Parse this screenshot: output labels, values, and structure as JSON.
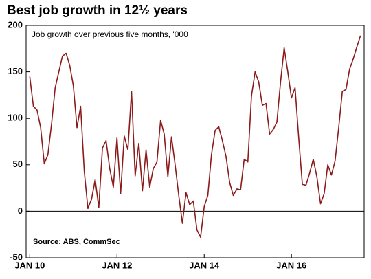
{
  "chart_data": {
    "type": "line",
    "title": "Best job growth in 12½ years",
    "subtitle": "Job growth over previous five months, '000",
    "source": "Source: ABS, CommSec",
    "x": [
      "2010-01",
      "2010-02",
      "2010-03",
      "2010-04",
      "2010-05",
      "2010-06",
      "2010-07",
      "2010-08",
      "2010-09",
      "2010-10",
      "2010-11",
      "2010-12",
      "2011-01",
      "2011-02",
      "2011-03",
      "2011-04",
      "2011-05",
      "2011-06",
      "2011-07",
      "2011-08",
      "2011-09",
      "2011-10",
      "2011-11",
      "2011-12",
      "2012-01",
      "2012-02",
      "2012-03",
      "2012-04",
      "2012-05",
      "2012-06",
      "2012-07",
      "2012-08",
      "2012-09",
      "2012-10",
      "2012-11",
      "2012-12",
      "2013-01",
      "2013-02",
      "2013-03",
      "2013-04",
      "2013-05",
      "2013-06",
      "2013-07",
      "2013-08",
      "2013-09",
      "2013-10",
      "2013-11",
      "2013-12",
      "2014-01",
      "2014-02",
      "2014-03",
      "2014-04",
      "2014-05",
      "2014-06",
      "2014-07",
      "2014-08",
      "2014-09",
      "2014-10",
      "2014-11",
      "2014-12",
      "2015-01",
      "2015-02",
      "2015-03",
      "2015-04",
      "2015-05",
      "2015-06",
      "2015-07",
      "2015-08",
      "2015-09",
      "2015-10",
      "2015-11",
      "2015-12",
      "2016-01",
      "2016-02",
      "2016-03",
      "2016-04",
      "2016-05",
      "2016-06",
      "2016-07",
      "2016-08",
      "2016-09",
      "2016-10",
      "2016-11",
      "2016-12",
      "2017-01",
      "2017-02",
      "2017-03",
      "2017-04",
      "2017-05",
      "2017-06",
      "2017-07",
      "2017-08"
    ],
    "series": [
      {
        "color": "#8b1a1a",
        "values": [
          145,
          113,
          109,
          90,
          51,
          61,
          94,
          133,
          150,
          167,
          170,
          157,
          135,
          90,
          113,
          43,
          3,
          13,
          34,
          4,
          68,
          76,
          46,
          26,
          79,
          19,
          81,
          66,
          129,
          38,
          73,
          22,
          66,
          26,
          46,
          53,
          98,
          83,
          37,
          80,
          50,
          17,
          -13,
          20,
          7,
          11,
          -20,
          -28,
          5,
          17,
          61,
          87,
          91,
          76,
          59,
          31,
          17,
          24,
          23,
          56,
          53,
          124,
          150,
          139,
          114,
          116,
          83,
          88,
          96,
          139,
          176,
          150,
          122,
          133,
          79,
          29,
          28,
          41,
          56,
          37,
          8,
          19,
          50,
          39,
          54,
          90,
          129,
          131,
          153,
          164,
          177,
          189
        ]
      }
    ],
    "xlim": [
      "2009-12",
      "2017-09"
    ],
    "xticks": [
      {
        "value": "2010-01",
        "label": "JAN 10"
      },
      {
        "value": "2012-01",
        "label": "JAN 12"
      },
      {
        "value": "2014-01",
        "label": "JAN 14"
      },
      {
        "value": "2016-01",
        "label": "JAN 16"
      }
    ],
    "ylim": [
      -50,
      200
    ],
    "yticks": [
      -50,
      0,
      50,
      100,
      150,
      200
    ],
    "grid": false
  }
}
